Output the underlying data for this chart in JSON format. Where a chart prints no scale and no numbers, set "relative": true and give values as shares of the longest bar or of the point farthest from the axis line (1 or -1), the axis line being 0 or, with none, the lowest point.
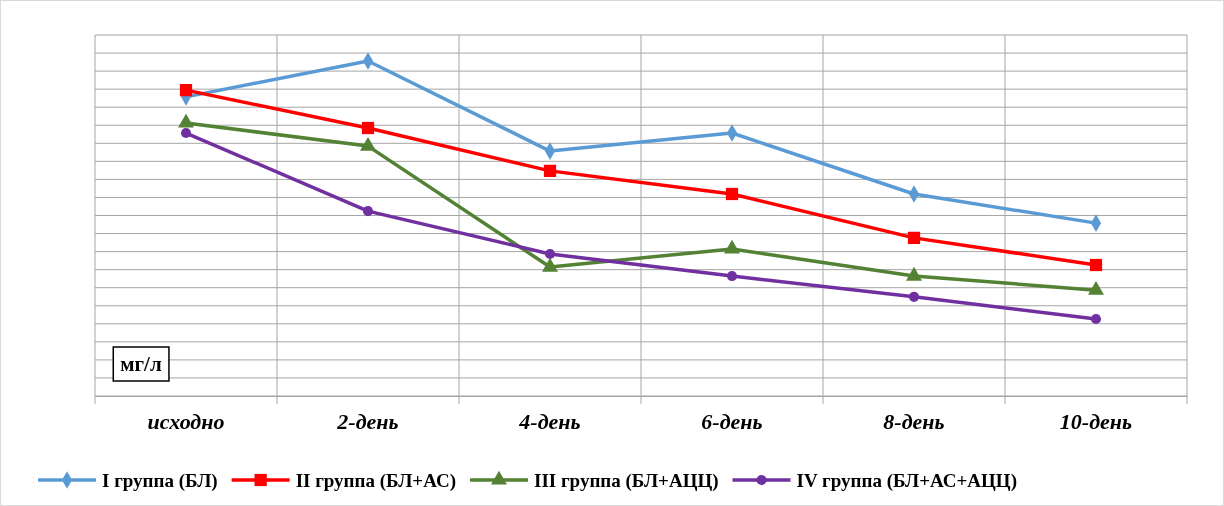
{
  "chart_data": {
    "type": "line",
    "relative": true,
    "ylabel": "мг/л",
    "grid": true,
    "legend": "bottom",
    "categories": [
      "исходно",
      "2-день",
      "4-день",
      "6-день",
      "8-день",
      "10-день"
    ],
    "series": [
      {
        "name": "I группа (БЛ)",
        "color": "#5b9bd5",
        "marker": "diamond",
        "values": [
          0.893,
          1,
          0.731,
          0.785,
          0.603,
          0.516
        ]
      },
      {
        "name": "II группа (БЛ+АС)",
        "color": "#ff0000",
        "marker": "square",
        "values": [
          0.913,
          0.8,
          0.672,
          0.603,
          0.472,
          0.391
        ]
      },
      {
        "name": "III группа (БЛ+АЦЦ)",
        "color": "#548235",
        "marker": "triangle",
        "values": [
          0.815,
          0.746,
          0.385,
          0.439,
          0.358,
          0.316
        ]
      },
      {
        "name": "IV группа (БЛ+АС+АЦЦ)",
        "color": "#7030a0",
        "marker": "circle",
        "values": [
          0.785,
          0.552,
          0.424,
          0.358,
          0.296,
          0.23
        ]
      }
    ]
  }
}
